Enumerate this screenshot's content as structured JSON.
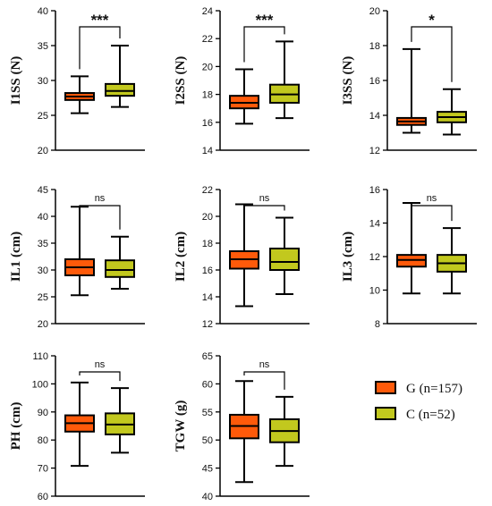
{
  "colors": {
    "G": "#ff5a0a",
    "C": "#c2c81e",
    "stroke": "#000000"
  },
  "legend": {
    "items": [
      {
        "key": "G",
        "label": "G (n=157)"
      },
      {
        "key": "C",
        "label": "C (n=52)"
      }
    ]
  },
  "chart_data": [
    {
      "type": "box",
      "ylabel": "I1SS (N)",
      "ylim": [
        20,
        40
      ],
      "yticks": [
        "20",
        "25",
        "30",
        "35",
        "40"
      ],
      "significance": "***",
      "boxes": [
        {
          "group": "G",
          "min": 25.3,
          "q1": 27.2,
          "median": 27.7,
          "q3": 28.2,
          "max": 30.6
        },
        {
          "group": "C",
          "min": 26.2,
          "q1": 27.8,
          "median": 28.5,
          "q3": 29.5,
          "max": 35.0
        }
      ]
    },
    {
      "type": "box",
      "ylabel": "I2SS (N)",
      "ylim": [
        14,
        24
      ],
      "yticks": [
        "14",
        "16",
        "18",
        "20",
        "22",
        "24"
      ],
      "significance": "***",
      "boxes": [
        {
          "group": "G",
          "min": 15.9,
          "q1": 17.0,
          "median": 17.4,
          "q3": 17.9,
          "max": 19.8
        },
        {
          "group": "C",
          "min": 16.3,
          "q1": 17.4,
          "median": 18.0,
          "q3": 18.7,
          "max": 21.8
        }
      ]
    },
    {
      "type": "box",
      "ylabel": "I3SS (N)",
      "ylim": [
        12,
        20
      ],
      "yticks": [
        "12",
        "14",
        "16",
        "18",
        "20"
      ],
      "significance": "*",
      "boxes": [
        {
          "group": "G",
          "min": 13.0,
          "q1": 13.45,
          "median": 13.65,
          "q3": 13.85,
          "max": 17.8
        },
        {
          "group": "C",
          "min": 12.9,
          "q1": 13.6,
          "median": 13.9,
          "q3": 14.2,
          "max": 15.5
        }
      ]
    },
    {
      "type": "box",
      "ylabel": "IL1 (cm)",
      "ylim": [
        20,
        45
      ],
      "yticks": [
        "20",
        "25",
        "30",
        "35",
        "40",
        "45"
      ],
      "significance": "ns",
      "boxes": [
        {
          "group": "G",
          "min": 25.3,
          "q1": 29.0,
          "median": 30.5,
          "q3": 32.0,
          "max": 41.8
        },
        {
          "group": "C",
          "min": 26.5,
          "q1": 28.7,
          "median": 30.0,
          "q3": 31.8,
          "max": 36.2
        }
      ]
    },
    {
      "type": "box",
      "ylabel": "IL2 (cm)",
      "ylim": [
        12,
        22
      ],
      "yticks": [
        "12",
        "14",
        "16",
        "18",
        "20",
        "22"
      ],
      "significance": "ns",
      "boxes": [
        {
          "group": "G",
          "min": 13.3,
          "q1": 16.1,
          "median": 16.8,
          "q3": 17.4,
          "max": 20.9
        },
        {
          "group": "C",
          "min": 14.2,
          "q1": 16.0,
          "median": 16.6,
          "q3": 17.6,
          "max": 19.9
        }
      ]
    },
    {
      "type": "box",
      "ylabel": "IL3 (cm)",
      "ylim": [
        8,
        16
      ],
      "yticks": [
        "8",
        "10",
        "12",
        "14",
        "16"
      ],
      "significance": "ns",
      "boxes": [
        {
          "group": "G",
          "min": 9.8,
          "q1": 11.4,
          "median": 11.8,
          "q3": 12.1,
          "max": 15.2
        },
        {
          "group": "C",
          "min": 9.8,
          "q1": 11.1,
          "median": 11.6,
          "q3": 12.1,
          "max": 13.7
        }
      ]
    },
    {
      "type": "box",
      "ylabel": "PH (cm)",
      "ylim": [
        60,
        110
      ],
      "yticks": [
        "60",
        "70",
        "80",
        "90",
        "100",
        "110"
      ],
      "significance": "ns",
      "boxes": [
        {
          "group": "G",
          "min": 70.8,
          "q1": 83.0,
          "median": 86.0,
          "q3": 88.8,
          "max": 100.5
        },
        {
          "group": "C",
          "min": 75.5,
          "q1": 82.0,
          "median": 85.5,
          "q3": 89.5,
          "max": 98.5
        }
      ]
    },
    {
      "type": "box",
      "ylabel": "TGW (g)",
      "ylim": [
        40,
        65
      ],
      "yticks": [
        "40",
        "45",
        "50",
        "55",
        "60",
        "65"
      ],
      "significance": "ns",
      "boxes": [
        {
          "group": "G",
          "min": 42.5,
          "q1": 50.3,
          "median": 52.5,
          "q3": 54.5,
          "max": 60.5
        },
        {
          "group": "C",
          "min": 45.4,
          "q1": 49.6,
          "median": 51.6,
          "q3": 53.7,
          "max": 57.7
        }
      ]
    }
  ]
}
